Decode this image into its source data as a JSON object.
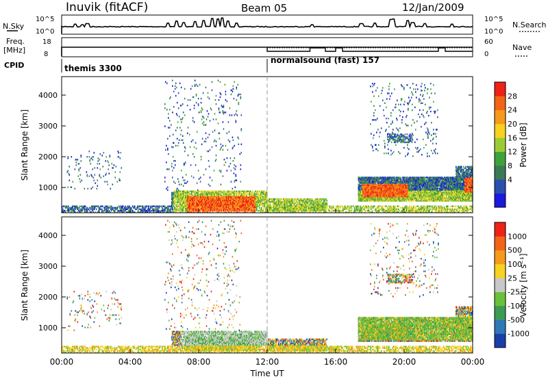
{
  "header": {
    "station": "Inuvik (fitACF)",
    "beam": "Beam 05",
    "date": "12/Jan/2009"
  },
  "top_panels": {
    "nsky_label": "N.Sky",
    "nsky_ticks": [
      "10^5",
      "10^0"
    ],
    "nsearch_label": "N.Search",
    "nsearch_ticks": [
      "10^5",
      "10^0"
    ],
    "freq_label": "Freq.",
    "freq_unit": "[MHz]",
    "freq_ticks": [
      "18",
      "8"
    ],
    "nave_label": "Nave",
    "nave_ticks": [
      "60",
      "0"
    ],
    "cpid_label": "CPID",
    "cpid_segments": [
      {
        "name": "themis 3300",
        "start_hour": 0,
        "end_hour": 12
      },
      {
        "name": "normalsound (fast) 157",
        "start_hour": 12,
        "end_hour": 24
      }
    ],
    "nsky_bursts": [
      {
        "hour": 0.8,
        "level": 0.25
      },
      {
        "hour": 1.2,
        "level": 0.2
      },
      {
        "hour": 1.5,
        "level": 0.3
      },
      {
        "hour": 6.2,
        "level": 0.35
      },
      {
        "hour": 6.7,
        "level": 0.55
      },
      {
        "hour": 7.1,
        "level": 0.4
      },
      {
        "hour": 7.8,
        "level": 0.5
      },
      {
        "hour": 8.3,
        "level": 0.6
      },
      {
        "hour": 8.8,
        "level": 0.8
      },
      {
        "hour": 9.1,
        "level": 0.75
      },
      {
        "hour": 9.4,
        "level": 0.85
      },
      {
        "hour": 9.7,
        "level": 0.55
      },
      {
        "hour": 10.2,
        "level": 0.35
      },
      {
        "hour": 14.6,
        "level": 0.2
      },
      {
        "hour": 17.5,
        "level": 0.3
      },
      {
        "hour": 18.3,
        "level": 0.35
      },
      {
        "hour": 19.2,
        "level": 0.7
      },
      {
        "hour": 19.4,
        "level": 0.75
      },
      {
        "hour": 20.2,
        "level": 0.6
      },
      {
        "hour": 20.5,
        "level": 0.4
      },
      {
        "hour": 21.2,
        "level": 0.3
      },
      {
        "hour": 22.8,
        "level": 0.25
      }
    ]
  },
  "chart_data": [
    {
      "type": "heatmap",
      "title": "",
      "quantity": "Power",
      "xlabel": "",
      "ylabel": "Slant Range [km]",
      "xlim": [
        0,
        24
      ],
      "ylim": [
        180,
        4600
      ],
      "yticks": [
        1000,
        2000,
        3000,
        4000
      ],
      "colorbar_label": "Power [dB]",
      "colorbar_ticks": [
        "28",
        "24",
        "20",
        "16",
        "12",
        "8",
        "4"
      ],
      "colors": [
        "#1a1adc",
        "#2a4fb0",
        "#3a7a55",
        "#3fa23c",
        "#9ccc33",
        "#f7d21f",
        "#f59a1b",
        "#f26418",
        "#ee2216"
      ]
    },
    {
      "type": "heatmap",
      "title": "",
      "quantity": "Velocity",
      "xlabel": "Time UT",
      "ylabel": "Slant Range [km]",
      "xlim": [
        0,
        24
      ],
      "ylim": [
        180,
        4600
      ],
      "yticks": [
        1000,
        2000,
        3000,
        4000
      ],
      "xticks": [
        "00:00",
        "04:00",
        "08:00",
        "12:00",
        "16:00",
        "20:00",
        "00:00"
      ],
      "colorbar_label": "Velocity [m s⁻¹]",
      "colorbar_ticks": [
        "1000",
        "500",
        "100",
        "25",
        "-25",
        "-100",
        "-500",
        "-1000"
      ],
      "colors": [
        "#1a3fa8",
        "#2f78b8",
        "#3b9a55",
        "#69c13a",
        "#c8c8c8",
        "#f7d21f",
        "#f59a1b",
        "#f26418",
        "#ee2216"
      ]
    }
  ]
}
